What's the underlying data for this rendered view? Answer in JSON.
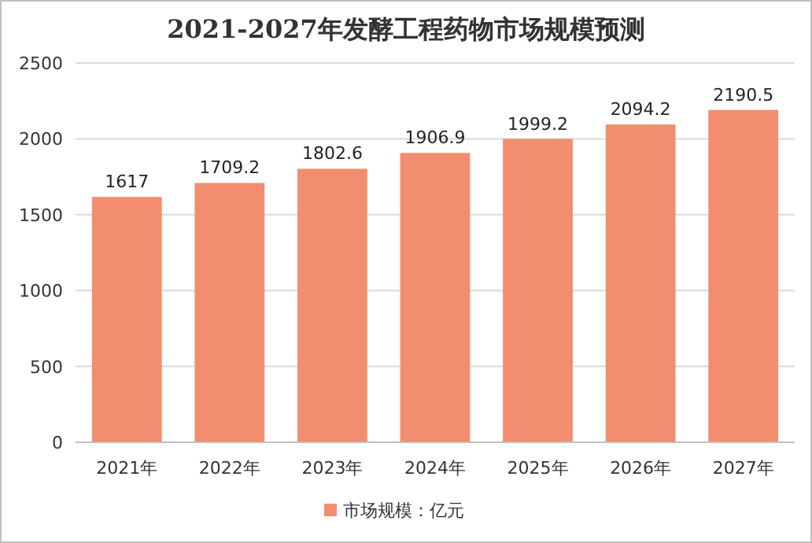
{
  "chart_data": {
    "type": "bar",
    "title": "2021-2027年发酵工程药物市场规模预测",
    "categories": [
      "2021年",
      "2022年",
      "2023年",
      "2024年",
      "2025年",
      "2026年",
      "2027年"
    ],
    "series": [
      {
        "name": "市场规模：亿元",
        "color": "#f28e6f",
        "values": [
          1617,
          1709.2,
          1802.6,
          1906.9,
          1999.2,
          2094.2,
          2190.5
        ]
      }
    ],
    "ylim": [
      0,
      2500
    ],
    "yticks": [
      0,
      500,
      1000,
      1500,
      2000,
      2500
    ],
    "grid": "y",
    "legend": "bottom",
    "data_labels": true
  }
}
